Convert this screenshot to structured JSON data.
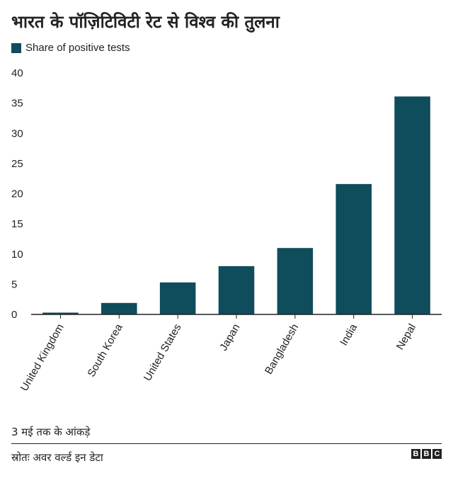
{
  "title": "भारत के पॉज़िटिविटी रेट से विश्व की तुलना",
  "legend": {
    "label": "Share of positive tests",
    "color": "#0f4c5c"
  },
  "footnote": "3 मई तक के आंकड़े",
  "source": "स्रोतः अवर वर्ल्ड इन डेटा",
  "brand": {
    "letters": [
      "B",
      "B",
      "C"
    ]
  },
  "chart_data": {
    "type": "bar",
    "categories": [
      "United Kingdom",
      "South Korea",
      "United States",
      "Japan",
      "Bangladesh",
      "India",
      "Nepal"
    ],
    "series": [
      {
        "name": "Share of positive tests",
        "values": [
          0.3,
          1.9,
          5.3,
          8.0,
          11.0,
          21.6,
          36.1
        ]
      }
    ],
    "ylim": [
      0,
      40
    ],
    "yticks": [
      0,
      5,
      10,
      15,
      20,
      25,
      30,
      35,
      40
    ],
    "grid": false,
    "legend_position": "top-left",
    "bar_color": "#0f4c5c"
  }
}
